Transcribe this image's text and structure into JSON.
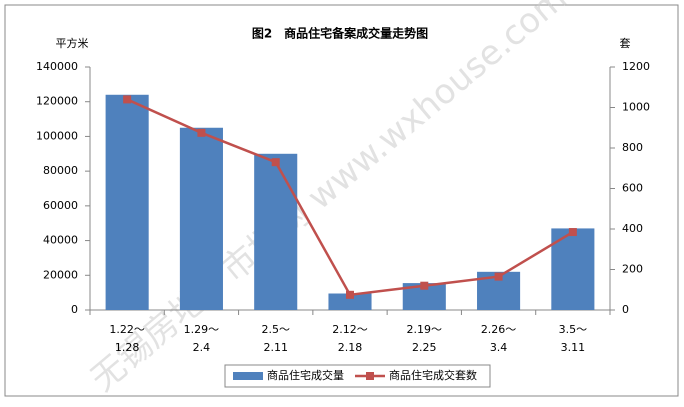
{
  "chart_data": {
    "type": "bar-line",
    "title": "图2　商品住宅备案成交量走势图",
    "y_label": "平方米",
    "y2_label": "套",
    "watermark": "无锡房地产市场网 www.wxhouse.com",
    "categories": [
      "1.22～\n1.28",
      "1.29～\n2.4",
      "2.5～\n2.11",
      "2.12～\n2.18",
      "2.19～\n2.25",
      "2.26～\n3.4",
      "3.5～\n3.11"
    ],
    "series": [
      {
        "name": "商品住宅成交量",
        "type": "bar",
        "color": "#4f81bd",
        "values": [
          124000,
          105000,
          90000,
          9500,
          15500,
          22000,
          47000
        ]
      },
      {
        "name": "商品住宅成交套数",
        "type": "line",
        "axis": "y2",
        "color": "#c0504d",
        "values": [
          1040,
          875,
          730,
          75,
          120,
          165,
          385
        ]
      }
    ],
    "ylim": [
      0,
      140000
    ],
    "yticks": [
      0,
      20000,
      40000,
      60000,
      80000,
      100000,
      120000,
      140000
    ],
    "y2lim": [
      0,
      1200
    ],
    "y2ticks": [
      0,
      200,
      400,
      600,
      800,
      1000,
      1200
    ],
    "legend": "bottom"
  }
}
